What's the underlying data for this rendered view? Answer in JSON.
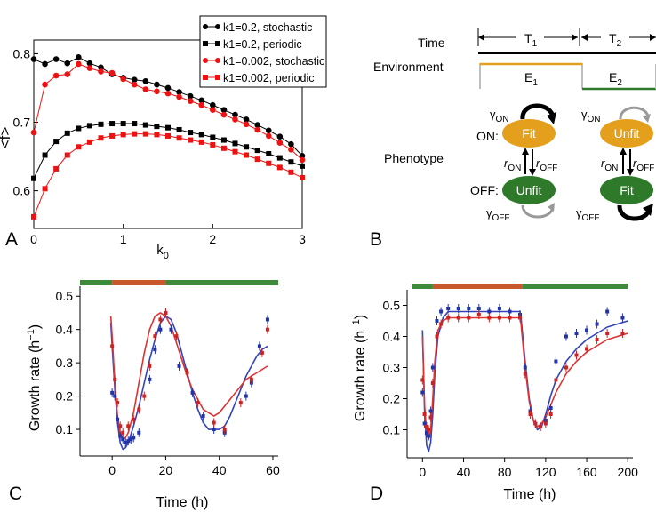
{
  "panel_labels": {
    "a": "A",
    "b": "B",
    "c": "C",
    "d": "D"
  },
  "chart_data": [
    {
      "panel": "A",
      "type": "line",
      "xlabel": "k0",
      "ylabel": "<f>",
      "xlim": [
        0,
        3
      ],
      "ylim": [
        0.545,
        0.82
      ],
      "xticks": [
        "0",
        "1",
        "2",
        "3"
      ],
      "yticks": [
        "0.6",
        "0.7",
        "0.8"
      ],
      "x": [
        0,
        0.125,
        0.25,
        0.375,
        0.5,
        0.625,
        0.75,
        0.875,
        1.0,
        1.125,
        1.25,
        1.375,
        1.5,
        1.625,
        1.75,
        1.875,
        2.0,
        2.125,
        2.25,
        2.375,
        2.5,
        2.625,
        2.75,
        2.875,
        3.0
      ],
      "legend": [
        {
          "label": "k1=0.2, stochastic",
          "color": "#000000",
          "marker": "circle"
        },
        {
          "label": "k1=0.2, periodic",
          "color": "#000000",
          "marker": "square"
        },
        {
          "label": "k1=0.002, stochastic",
          "color": "#ee1111",
          "marker": "circle"
        },
        {
          "label": "k1=0.002, periodic",
          "color": "#ee1111",
          "marker": "square"
        }
      ],
      "series": [
        {
          "name": "k1=0.2, stochastic",
          "values": [
            0.792,
            0.785,
            0.792,
            0.786,
            0.795,
            0.786,
            0.78,
            0.77,
            0.765,
            0.762,
            0.76,
            0.755,
            0.75,
            0.744,
            0.738,
            0.732,
            0.725,
            0.718,
            0.711,
            0.704,
            0.696,
            0.688,
            0.679,
            0.668,
            0.651
          ]
        },
        {
          "name": "k1=0.2, periodic",
          "values": [
            0.618,
            0.652,
            0.672,
            0.684,
            0.691,
            0.695,
            0.697,
            0.698,
            0.698,
            0.698,
            0.696,
            0.694,
            0.692,
            0.689,
            0.685,
            0.682,
            0.678,
            0.674,
            0.669,
            0.664,
            0.659,
            0.654,
            0.648,
            0.642,
            0.636
          ]
        },
        {
          "name": "k1=0.002, stochastic",
          "values": [
            0.685,
            0.755,
            0.768,
            0.77,
            0.785,
            0.779,
            0.774,
            0.772,
            0.763,
            0.755,
            0.748,
            0.745,
            0.742,
            0.737,
            0.731,
            0.725,
            0.718,
            0.711,
            0.704,
            0.697,
            0.689,
            0.68,
            0.67,
            0.66,
            0.645
          ]
        },
        {
          "name": "k1=0.002, periodic",
          "values": [
            0.562,
            0.603,
            0.632,
            0.652,
            0.664,
            0.671,
            0.677,
            0.68,
            0.682,
            0.683,
            0.683,
            0.682,
            0.68,
            0.677,
            0.674,
            0.671,
            0.667,
            0.662,
            0.657,
            0.652,
            0.646,
            0.64,
            0.634,
            0.627,
            0.619
          ]
        }
      ]
    },
    {
      "panel": "C",
      "type": "line",
      "xlabel": "Time (h)",
      "ylabel": "Growth rate (h⁻¹)",
      "xlim": [
        -12,
        62
      ],
      "ylim": [
        0.02,
        0.53
      ],
      "xticks": [
        "0",
        "20",
        "40",
        "60"
      ],
      "yticks": [
        "0.1",
        "0.2",
        "0.3",
        "0.4",
        "0.5"
      ],
      "environment_bar": [
        {
          "from": -12,
          "to": 0,
          "color": "#3d8a3a"
        },
        {
          "from": 0,
          "to": 20,
          "color": "#c8582b"
        },
        {
          "from": 20,
          "to": 62,
          "color": "#3d8a3a"
        }
      ],
      "series": [
        {
          "name": "blue data",
          "color": "#2233aa",
          "x": [
            0,
            1,
            2,
            3,
            4,
            5,
            6,
            7,
            8,
            10,
            14,
            16,
            18,
            20,
            22,
            25,
            30,
            34,
            38,
            42,
            50,
            52,
            55,
            58
          ],
          "values": [
            0.21,
            0.2,
            0.13,
            0.08,
            0.07,
            0.06,
            0.065,
            0.07,
            0.075,
            0.09,
            0.25,
            0.34,
            0.4,
            0.45,
            0.4,
            0.29,
            0.21,
            0.14,
            0.1,
            0.09,
            0.2,
            0.24,
            0.35,
            0.43
          ]
        },
        {
          "name": "red data",
          "color": "#cc2222",
          "x": [
            0,
            1,
            2,
            3,
            4,
            6,
            8,
            10,
            12,
            14,
            16,
            18,
            20,
            24,
            28,
            32,
            38,
            42,
            48,
            52,
            56,
            58
          ],
          "values": [
            0.35,
            0.25,
            0.18,
            0.11,
            0.09,
            0.11,
            0.13,
            0.16,
            0.2,
            0.29,
            0.38,
            0.43,
            0.45,
            0.38,
            0.27,
            0.18,
            0.12,
            0.1,
            0.18,
            0.25,
            0.33,
            0.4
          ]
        },
        {
          "name": "blue model",
          "color": "#3344bb",
          "x": [
            -0.5,
            0,
            1,
            2,
            3,
            4,
            5,
            6,
            8,
            10,
            12,
            14,
            16,
            18,
            20,
            22,
            24,
            26,
            28,
            30,
            32,
            34,
            36,
            38,
            40,
            42,
            44,
            46,
            48,
            50,
            52,
            54,
            56,
            58
          ],
          "values": [
            0.42,
            0.35,
            0.22,
            0.12,
            0.06,
            0.04,
            0.045,
            0.06,
            0.11,
            0.17,
            0.24,
            0.31,
            0.37,
            0.42,
            0.44,
            0.43,
            0.39,
            0.33,
            0.27,
            0.21,
            0.16,
            0.12,
            0.1,
            0.1,
            0.1,
            0.11,
            0.14,
            0.18,
            0.22,
            0.26,
            0.29,
            0.32,
            0.34,
            0.35
          ]
        },
        {
          "name": "red model",
          "color": "#dd3333",
          "x": [
            -0.5,
            0,
            1,
            2,
            3,
            4,
            5,
            6,
            8,
            10,
            12,
            14,
            16,
            18,
            20,
            22,
            24,
            26,
            28,
            30,
            32,
            34,
            36,
            38,
            40,
            42,
            44,
            46,
            48,
            50,
            52,
            54,
            56,
            58
          ],
          "values": [
            0.44,
            0.38,
            0.24,
            0.14,
            0.09,
            0.07,
            0.075,
            0.09,
            0.15,
            0.24,
            0.33,
            0.4,
            0.44,
            0.45,
            0.44,
            0.41,
            0.36,
            0.31,
            0.26,
            0.22,
            0.19,
            0.16,
            0.15,
            0.14,
            0.15,
            0.17,
            0.19,
            0.21,
            0.23,
            0.25,
            0.26,
            0.27,
            0.28,
            0.29
          ]
        }
      ]
    },
    {
      "panel": "D",
      "type": "line",
      "xlabel": "Time (h)",
      "ylabel": "Growth rate (h⁻¹)",
      "xlim": [
        -15,
        205
      ],
      "ylim": [
        0.01,
        0.55
      ],
      "xticks": [
        "0",
        "40",
        "80",
        "120",
        "160",
        "200"
      ],
      "yticks": [
        "0.1",
        "0.2",
        "0.3",
        "0.4",
        "0.5"
      ],
      "environment_bar": [
        {
          "from": -10,
          "to": 10,
          "color": "#3d8a3a"
        },
        {
          "from": 10,
          "to": 97,
          "color": "#c8582b"
        },
        {
          "from": 97,
          "to": 200,
          "color": "#3d8a3a"
        }
      ],
      "series": [
        {
          "name": "blue data",
          "color": "#2233aa",
          "x": [
            0,
            2,
            4,
            6,
            8,
            10,
            14,
            18,
            25,
            35,
            45,
            55,
            65,
            75,
            85,
            95,
            100,
            105,
            110,
            115,
            120,
            125,
            130,
            140,
            150,
            160,
            170,
            180,
            195
          ],
          "values": [
            0.22,
            0.12,
            0.09,
            0.08,
            0.16,
            0.3,
            0.45,
            0.48,
            0.49,
            0.49,
            0.49,
            0.49,
            0.48,
            0.49,
            0.48,
            0.47,
            0.3,
            0.16,
            0.12,
            0.11,
            0.13,
            0.17,
            0.32,
            0.4,
            0.41,
            0.42,
            0.44,
            0.48,
            0.46
          ]
        },
        {
          "name": "red data",
          "color": "#cc2222",
          "x": [
            0,
            2,
            4,
            6,
            8,
            10,
            14,
            18,
            25,
            35,
            45,
            55,
            65,
            75,
            85,
            95,
            100,
            105,
            110,
            115,
            120,
            125,
            130,
            140,
            150,
            160,
            170,
            180,
            195
          ],
          "values": [
            0.26,
            0.15,
            0.11,
            0.1,
            0.14,
            0.25,
            0.4,
            0.44,
            0.46,
            0.46,
            0.46,
            0.47,
            0.46,
            0.46,
            0.46,
            0.46,
            0.28,
            0.15,
            0.12,
            0.11,
            0.12,
            0.15,
            0.26,
            0.3,
            0.34,
            0.36,
            0.39,
            0.41,
            0.41
          ]
        },
        {
          "name": "blue model",
          "color": "#3344bb",
          "x": [
            0,
            2,
            4,
            6,
            8,
            10,
            12,
            15,
            20,
            25,
            30,
            40,
            60,
            80,
            95,
            96,
            100,
            104,
            108,
            112,
            116,
            120,
            125,
            130,
            140,
            150,
            160,
            170,
            180,
            200
          ],
          "values": [
            0.42,
            0.16,
            0.05,
            0.03,
            0.06,
            0.15,
            0.28,
            0.4,
            0.46,
            0.48,
            0.48,
            0.48,
            0.48,
            0.48,
            0.48,
            0.46,
            0.32,
            0.2,
            0.13,
            0.1,
            0.11,
            0.15,
            0.21,
            0.26,
            0.32,
            0.36,
            0.39,
            0.41,
            0.43,
            0.45
          ]
        },
        {
          "name": "red model",
          "color": "#dd3333",
          "x": [
            0,
            2,
            4,
            6,
            8,
            10,
            12,
            15,
            20,
            25,
            30,
            40,
            60,
            80,
            95,
            96,
            100,
            104,
            108,
            112,
            116,
            120,
            125,
            130,
            140,
            150,
            160,
            170,
            180,
            200
          ],
          "values": [
            0.4,
            0.18,
            0.09,
            0.07,
            0.1,
            0.2,
            0.32,
            0.42,
            0.45,
            0.46,
            0.46,
            0.46,
            0.46,
            0.46,
            0.46,
            0.44,
            0.3,
            0.19,
            0.13,
            0.11,
            0.12,
            0.14,
            0.18,
            0.22,
            0.28,
            0.32,
            0.35,
            0.37,
            0.39,
            0.41
          ]
        }
      ]
    }
  ],
  "diagram": {
    "time_label": "Time",
    "environment_label": "Environment",
    "phenotype_label": "Phenotype",
    "on_label": "ON:",
    "off_label": "OFF:",
    "t1_label": "T",
    "t1_sub": "1",
    "t2_label": "T",
    "t2_sub": "2",
    "e1_label": "E",
    "e1_sub": "1",
    "e2_label": "E",
    "e2_sub": "2",
    "fit_label": "Fit",
    "unfit_label": "Unfit",
    "gamma": "γ",
    "on_sub": "ON",
    "off_sub": "OFF",
    "r": "r",
    "colors": {
      "orange": "#e4a01d",
      "green": "#2f7a2a",
      "env_orange": "#e0a020",
      "env_green": "#3a7a3a"
    }
  }
}
